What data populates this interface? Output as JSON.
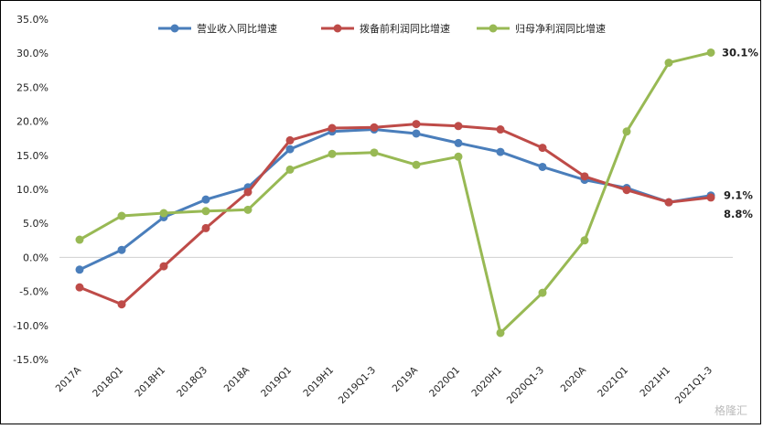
{
  "chart_data": {
    "type": "line",
    "categories": [
      "2017A",
      "2018Q1",
      "2018H1",
      "2018Q3",
      "2018A",
      "2019Q1",
      "2019H1",
      "2019Q1-3",
      "2019A",
      "2020Q1",
      "2020H1",
      "2020Q1-3",
      "2020A",
      "2021Q1",
      "2021H1",
      "2021Q1-3"
    ],
    "series": [
      {
        "name": "营业收入同比增速",
        "color": "#4a7ebb",
        "values": [
          -1.8,
          1.1,
          5.9,
          8.5,
          10.3,
          15.9,
          18.5,
          18.8,
          18.2,
          16.8,
          15.5,
          13.3,
          11.4,
          10.2,
          8.1,
          9.1
        ]
      },
      {
        "name": "拨备前利润同比增速",
        "color": "#be4b48",
        "values": [
          -4.4,
          -6.9,
          -1.3,
          4.3,
          9.6,
          17.2,
          19.0,
          19.1,
          19.6,
          19.3,
          18.8,
          16.1,
          11.9,
          9.9,
          8.1,
          8.8
        ]
      },
      {
        "name": "归母净利润同比增速",
        "color": "#98b954",
        "values": [
          2.6,
          6.1,
          6.5,
          6.8,
          7.0,
          12.9,
          15.2,
          15.4,
          13.6,
          14.8,
          -11.1,
          -5.2,
          2.5,
          18.5,
          28.6,
          30.1
        ]
      }
    ],
    "ylim": [
      -15,
      35
    ],
    "yticks": [
      "35.0%",
      "30.0%",
      "25.0%",
      "20.0%",
      "15.0%",
      "10.0%",
      "5.0%",
      "0.0%",
      "-5.0%",
      "-10.0%",
      "-15.0%"
    ],
    "ytick_values": [
      35,
      30,
      25,
      20,
      15,
      10,
      5,
      0,
      -5,
      -10,
      -15
    ],
    "end_labels": [
      "9.1%",
      "8.8%",
      "30.1%"
    ],
    "legend_position": "top",
    "grid": false
  },
  "watermark": "格隆汇"
}
